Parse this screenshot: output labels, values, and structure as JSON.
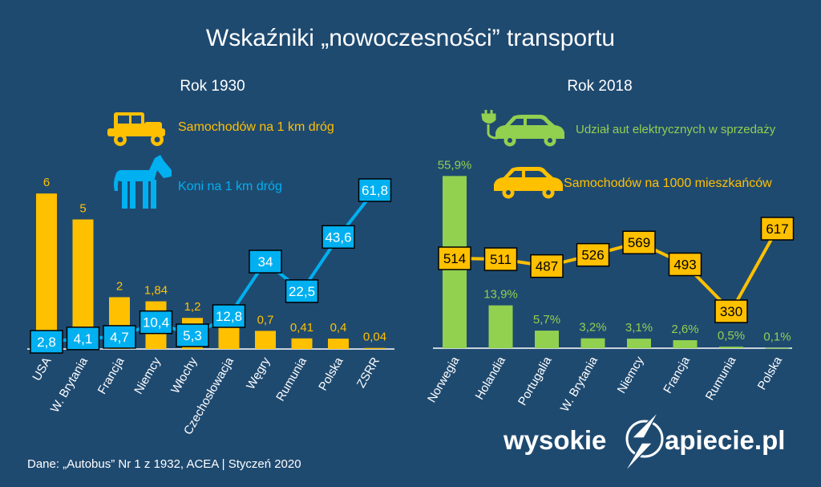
{
  "title": "Wskaźniki „nowoczesności” transportu",
  "source": "Dane: „Autobus” Nr 1 z 1932, ACEA  |  Styczeń 2020",
  "logo": {
    "left": "wysokie",
    "right": "apiecie.pl"
  },
  "colors": {
    "background": "#1f4a70",
    "yellow": "#ffc000",
    "blue": "#00b0f0",
    "green": "#92d050"
  },
  "chart_data": [
    {
      "type": "bar",
      "subtitle": "Rok 1930",
      "categories": [
        "USA",
        "W. Brytania",
        "Francja",
        "Niemcy",
        "Włochy",
        "Czechosłowacja",
        "Węgry",
        "Rumunia",
        "Polska",
        "ZSRR"
      ],
      "series": [
        {
          "name": "Samochodów na 1 km dróg",
          "type": "bar",
          "color": "#ffc000",
          "values": [
            6,
            5,
            2,
            1.84,
            1.2,
            0.85,
            0.7,
            0.41,
            0.4,
            0.04
          ],
          "labels": [
            "6",
            "5",
            "2",
            "1,84",
            "1,2",
            "",
            "0,7",
            "0,41",
            "0,4",
            "0,04"
          ]
        },
        {
          "name": "Koni na 1 km dróg",
          "type": "line",
          "color": "#00b0f0",
          "values": [
            2.8,
            4.1,
            4.7,
            10.4,
            5.3,
            12.8,
            34,
            22.5,
            43.6,
            61.8
          ],
          "labels": [
            "2,8",
            "4,1",
            "4,7",
            "10,4",
            "5,3",
            "12,8",
            "34",
            "22,5",
            "43,6",
            "61,8"
          ]
        }
      ]
    },
    {
      "type": "bar",
      "subtitle": "Rok 2018",
      "categories": [
        "Norwegia",
        "Holandia",
        "Portugalia",
        "W. Brytania",
        "Niemcy",
        "Francja",
        "Rumunia",
        "Polska"
      ],
      "series": [
        {
          "name": "Udział aut elektrycznych w sprzedaży",
          "type": "bar",
          "color": "#92d050",
          "values": [
            55.9,
            13.9,
            5.7,
            3.2,
            3.1,
            2.6,
            0.5,
            0.1
          ],
          "labels": [
            "55,9%",
            "13,9%",
            "5,7%",
            "3,2%",
            "3,1%",
            "2,6%",
            "0,5%",
            "0,1%"
          ]
        },
        {
          "name": "Samochodów na 1000 mieszkańców",
          "type": "line",
          "color": "#ffc000",
          "values": [
            514,
            511,
            487,
            526,
            569,
            493,
            330,
            617
          ],
          "labels": [
            "514",
            "511",
            "487",
            "526",
            "569",
            "493",
            "330",
            "617"
          ]
        }
      ]
    }
  ]
}
